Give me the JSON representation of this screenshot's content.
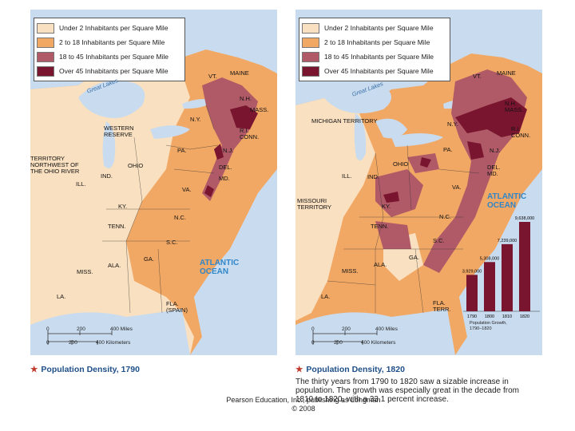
{
  "colors": {
    "water": "#c9dcef",
    "under2": "#f9e0c0",
    "d2to18": "#f2a865",
    "d18to45": "#b05a67",
    "over45": "#7a1530",
    "ocean_label": "#2f86c8",
    "title_blue": "#1f4f88",
    "star_red": "#c0392b"
  },
  "legend": [
    {
      "label": "Under 2 Inhabitants per Square Mile",
      "color": "#f9e0c0"
    },
    {
      "label": "2 to 18 Inhabitants per Square Mile",
      "color": "#f2a865"
    },
    {
      "label": "18 to 45 Inhabitants per Square Mile",
      "color": "#b05a67"
    },
    {
      "label": "Over 45 Inhabitants per Square Mile",
      "color": "#7a1530"
    }
  ],
  "map1790": {
    "title": "Population Density, 1790",
    "labels": {
      "vt": "VT.",
      "maine": "MAINE",
      "nh": "N.H.",
      "mass": "MASS.",
      "ny": "N.Y.",
      "ri_conn": "R.I.\nCONN.",
      "western_reserve": "WESTERN\nRESERVE",
      "pa": "PA.",
      "nj": "N.J.",
      "territory": "TERRITORY\nNORTHWEST OF\nTHE OHIO RIVER",
      "ohio": "OHIO",
      "ind": "IND.",
      "ill": "ILL.",
      "del": "DEL.",
      "md": "MD.",
      "va": "VA.",
      "ky": "KY.",
      "nc": "N.C.",
      "tenn": "TENN.",
      "sc": "S.C.",
      "ala": "ALA.",
      "ga": "GA.",
      "miss": "MISS.",
      "la": "LA.",
      "fla": "FLA.\n(SPAIN)",
      "great_lakes": "Great Lakes",
      "ocean": "ATLANTIC\nOCEAN"
    },
    "scale": {
      "miles": [
        "0",
        "200",
        "400 Miles"
      ],
      "km": [
        "0",
        "200",
        "400 Kilometers"
      ]
    }
  },
  "map1820": {
    "title": "Population Density, 1820",
    "labels": {
      "vt": "VT.",
      "maine": "MAINE",
      "nh": "N.H.\nMASS.",
      "ny": "N.Y.",
      "ri_conn": "R.I.\nCONN.",
      "michigan": "MICHIGAN TERRITORY",
      "pa": "PA.",
      "nj": "N.J.",
      "ohio": "OHIO",
      "ind": "IND.",
      "ill": "ILL.",
      "del_md": "DEL.\nMD.",
      "va": "VA.",
      "missouri": "MISSOURI\nTERRITORY",
      "ky": "KY.",
      "nc": "N.C.",
      "tenn": "TENN.",
      "sc": "S.C.",
      "ala": "ALA.",
      "ga": "GA.",
      "miss": "MISS.",
      "la": "LA.",
      "fla": "FLA.\nTERR.",
      "great_lakes": "Great Lakes",
      "ocean": "ATLANTIC\nOCEAN"
    },
    "scale": {
      "miles": [
        "0",
        "200",
        "400 Miles"
      ],
      "km": [
        "0",
        "200",
        "400 Kilometers"
      ]
    }
  },
  "chart_data": {
    "type": "bar",
    "title": "Population Growth,\n1790–1820",
    "categories": [
      "1790",
      "1800",
      "1810",
      "1820"
    ],
    "values": [
      3929000,
      5308000,
      7239000,
      9638000
    ],
    "value_labels": [
      "3,929,000",
      "5,308,000",
      "7,239,000",
      "9,638,000"
    ],
    "color": "#7a1530"
  },
  "caption": "The thirty years from 1790 to 1820 saw a sizable increase in population. The growth was especially great in the decade from 1810 to 1820, with a 33.1 percent increase.",
  "credit": "Pearson Education, Inc., publishing as Longman\n© 2008"
}
